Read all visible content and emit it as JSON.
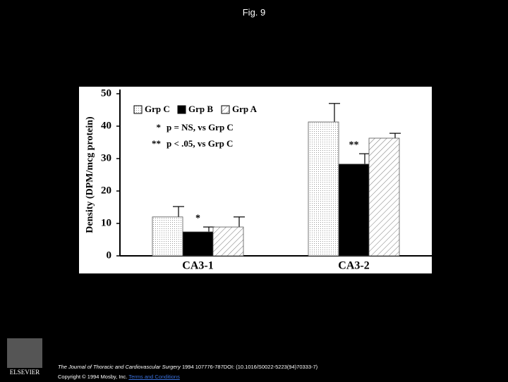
{
  "slide_title": "Fig. 9",
  "chart_data": {
    "type": "bar",
    "ylabel": "Density (DPM/mcg protein)",
    "categories": [
      "CA3-1",
      "CA3-2"
    ],
    "series": [
      {
        "name": "Grp C",
        "color": "#ffffff",
        "pattern": "dots",
        "values": [
          12.0,
          41.3
        ],
        "errors": [
          3.2,
          5.7
        ]
      },
      {
        "name": "Grp B",
        "color": "#000000",
        "pattern": "solid",
        "values": [
          7.4,
          28.3
        ],
        "errors": [
          1.5,
          3.2
        ]
      },
      {
        "name": "Grp A",
        "color": "#ffffff",
        "pattern": "hatch",
        "values": [
          8.9,
          36.3
        ],
        "errors": [
          3.1,
          1.5
        ]
      }
    ],
    "annotations": [
      {
        "text": "*",
        "category": 0,
        "series": 1
      },
      {
        "text": "**",
        "category": 1,
        "series": 1
      }
    ],
    "notes": [
      {
        "mark": "*",
        "text": "p = NS, vs Grp C"
      },
      {
        "mark": "**",
        "text": "p < .05, vs Grp C"
      }
    ],
    "ylim": [
      0,
      50
    ],
    "yticks": [
      0,
      10,
      20,
      30,
      40,
      50
    ]
  },
  "footer": {
    "journal": "The Journal of Thoracic and Cardiovascular Surgery",
    "citation": "1994 107776-787DOI: (10.1016/S0022-5223(94)70333-7)",
    "copyright": "Copyright © 1994 Mosby, Inc.",
    "link": "Terms and Conditions",
    "logo": "ELSEVIER"
  }
}
